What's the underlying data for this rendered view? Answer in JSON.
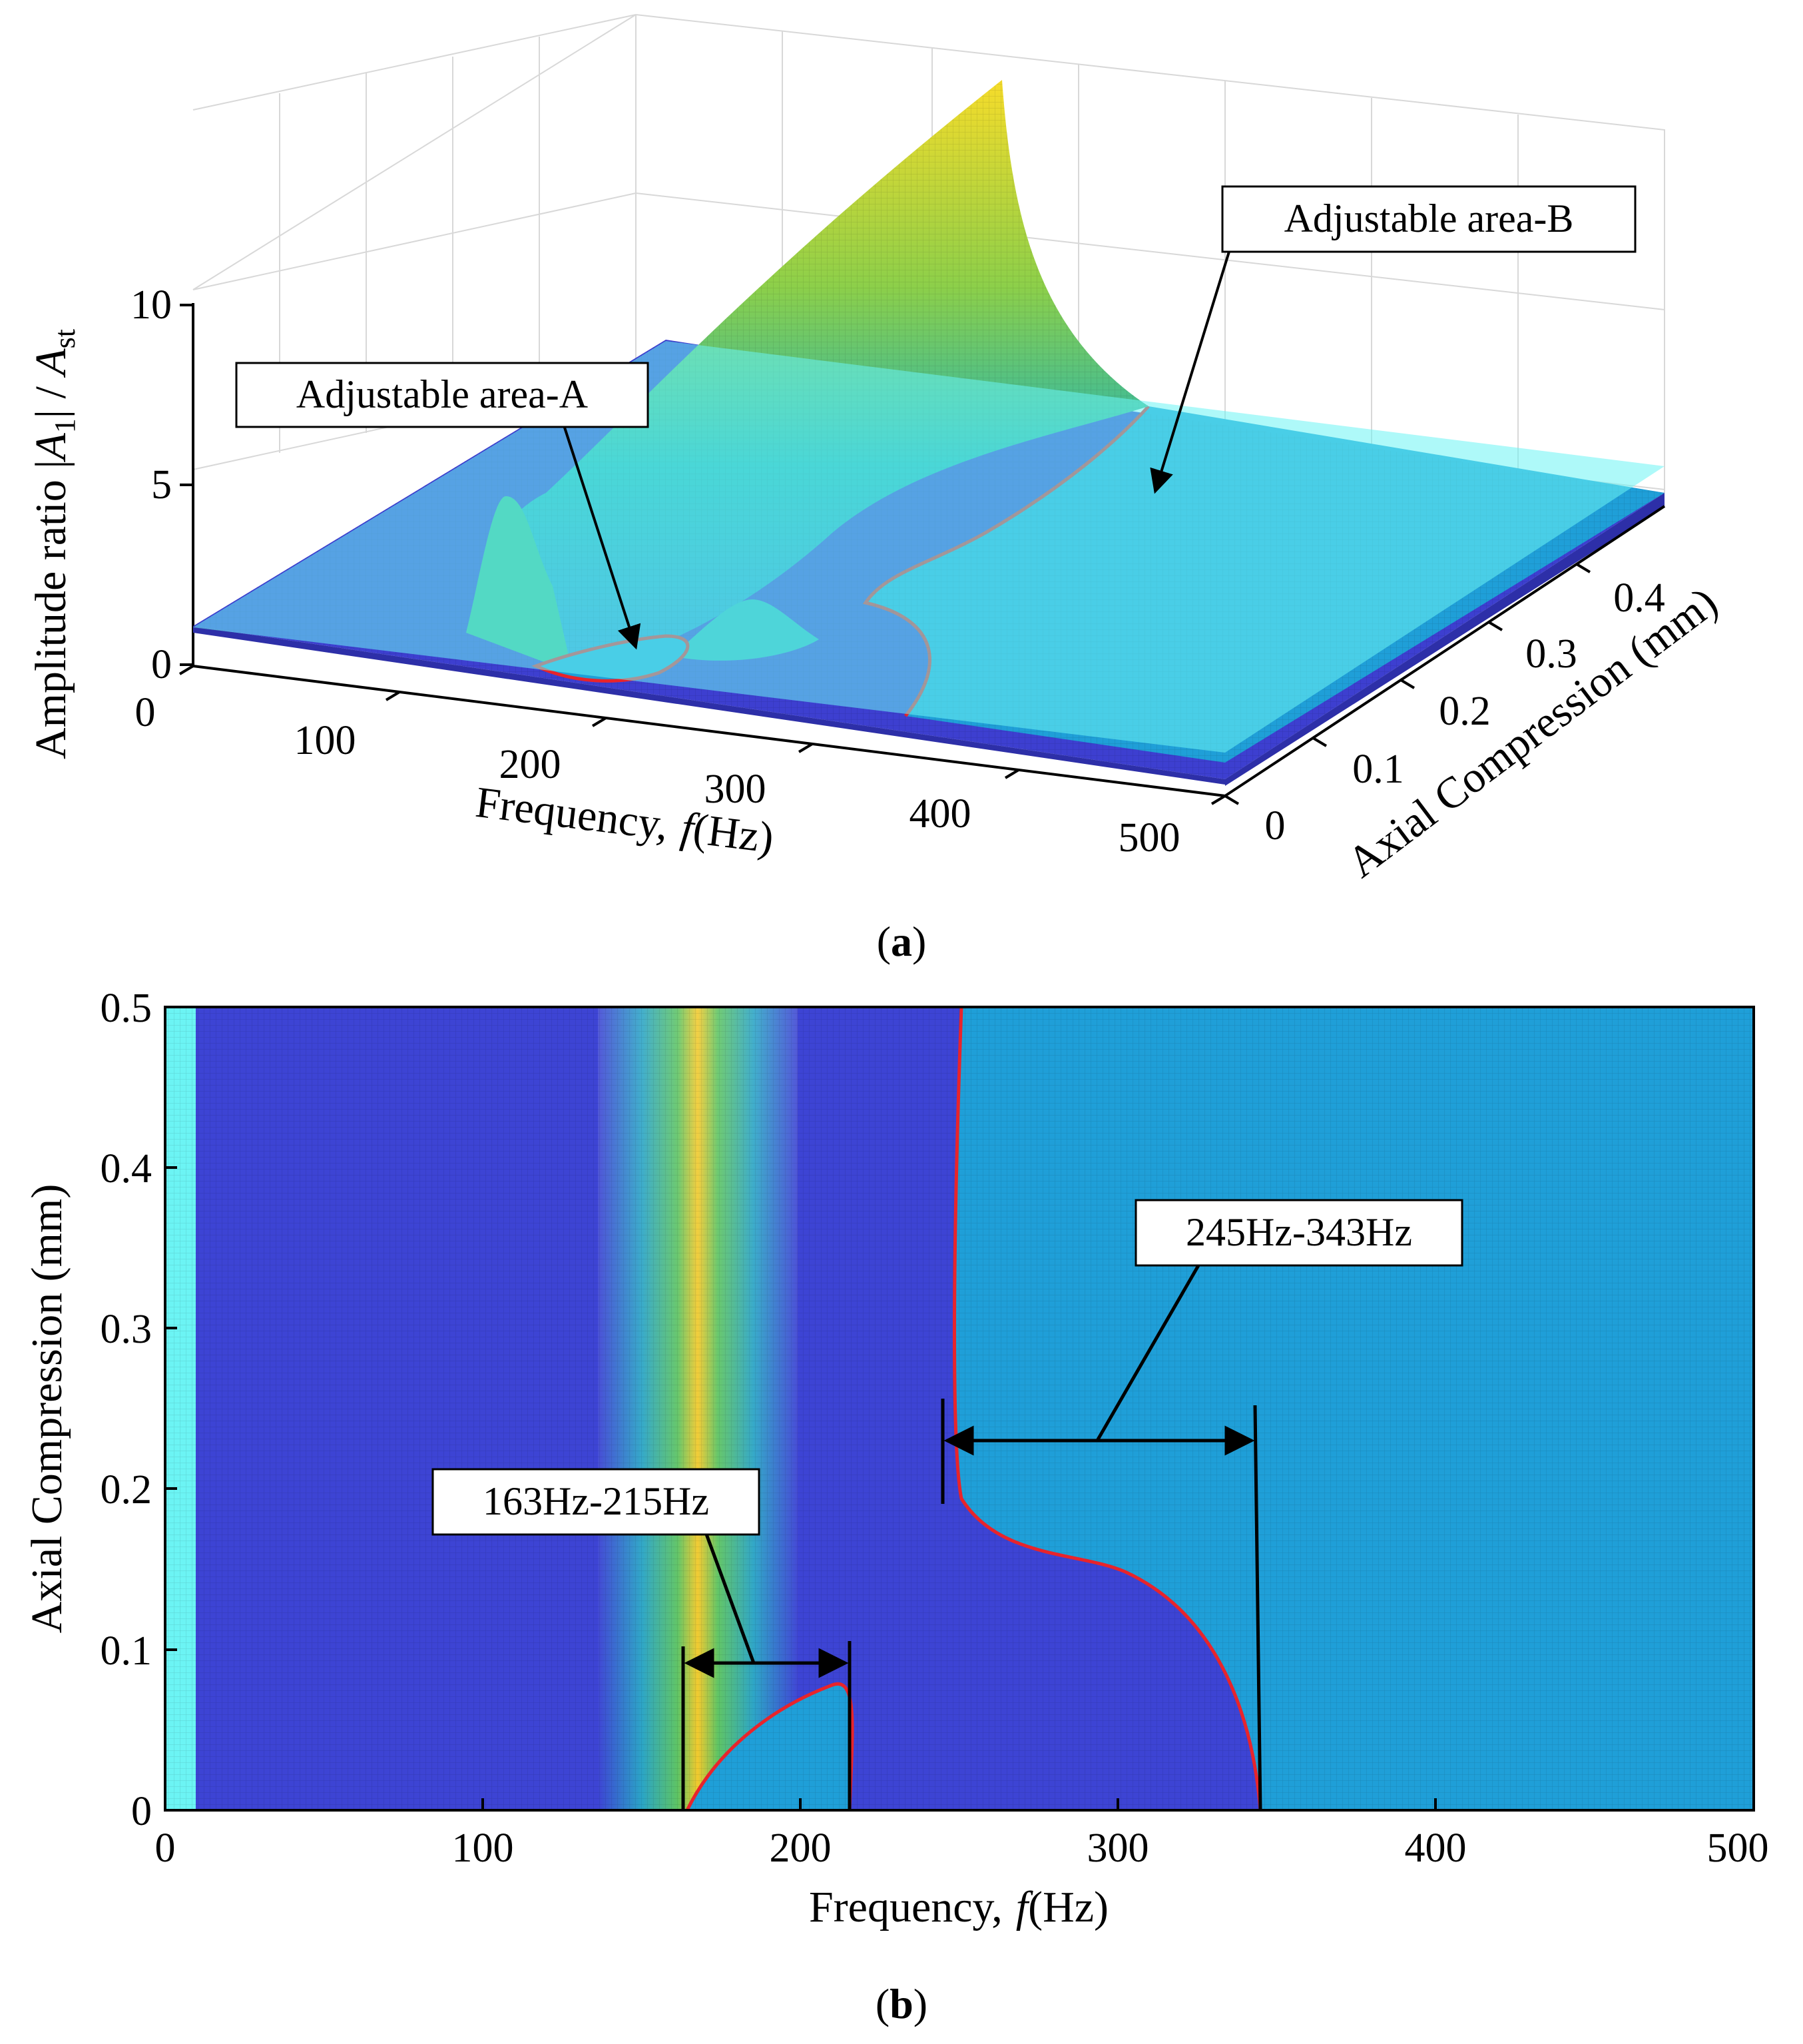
{
  "chart_data": [
    {
      "type": "surface",
      "caption_letter": "a",
      "xlabel": "Frequency,",
      "xlabel_var": "f",
      "xlabel_unit": "(Hz)",
      "ylabel": "Axial Compression (mm)",
      "zlabel_prefix": "Amplitude ratio |",
      "zlabel_var1": "A",
      "zlabel_sub1": "1",
      "zlabel_mid": "| / ",
      "zlabel_var2": "A",
      "zlabel_sub2": "st",
      "xlim": [
        0,
        500
      ],
      "ylim": [
        0,
        0.5
      ],
      "zlim": [
        0,
        10
      ],
      "x_ticks": [
        "0",
        "100",
        "200",
        "300",
        "400",
        "500"
      ],
      "y_ticks": [
        "0",
        "0.1",
        "0.2",
        "0.3",
        "0.4"
      ],
      "z_ticks": [
        "0",
        "5",
        "10"
      ],
      "reference_plane_z": 1,
      "annotations": [
        "Adjustable area-A",
        "Adjustable area-B"
      ],
      "grid": true,
      "colormap": "parula"
    },
    {
      "type": "heatmap",
      "caption_letter": "b",
      "xlabel": "Frequency,",
      "xlabel_var": "f",
      "xlabel_unit": "(Hz)",
      "ylabel": "Axial Compression (mm)",
      "xlim": [
        0,
        500
      ],
      "ylim": [
        0,
        0.5
      ],
      "x_ticks": [
        "0",
        "100",
        "200",
        "300",
        "400",
        "500"
      ],
      "y_ticks": [
        "0",
        "0.1",
        "0.2",
        "0.3",
        "0.4",
        "0.5"
      ],
      "resonance_peak_hz": 172,
      "region_A": {
        "label": "163Hz-215Hz",
        "f_min": 163,
        "f_max": 215,
        "max_compression": 0.08
      },
      "region_B": {
        "label": "245Hz-343Hz",
        "f_min": 245,
        "f_max": 343,
        "boundary_compression_at_245": 0.19
      },
      "boundary_color": "#e8242b"
    }
  ],
  "colors": {
    "parula_dark": "#3d3fd0",
    "parula_mid": "#1f9fd8",
    "parula_green": "#36b98a",
    "parula_yellow": "#f6dc2a",
    "plane_cyan": "#6cf4f4",
    "boundary_red": "#e8242b"
  }
}
